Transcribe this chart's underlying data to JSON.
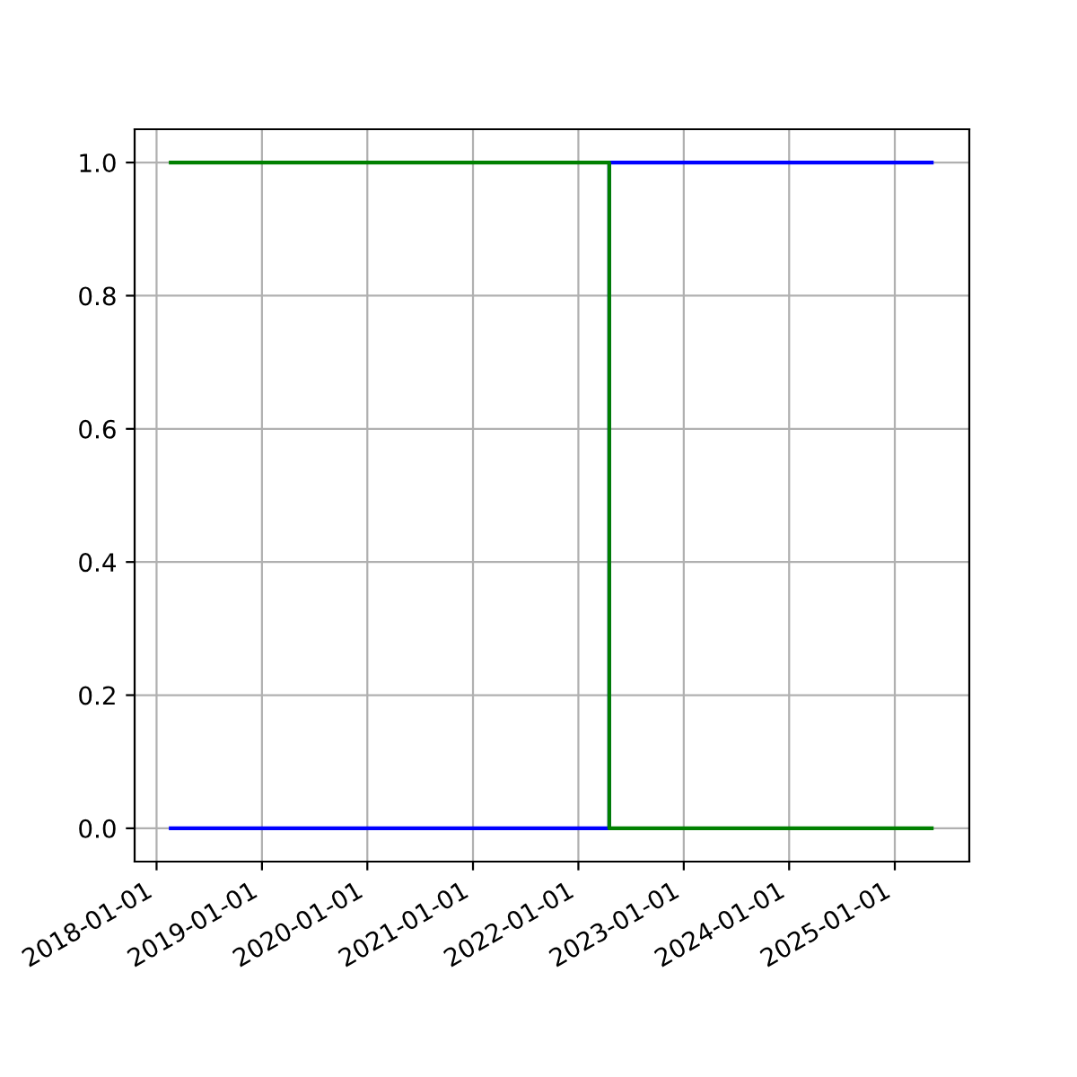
{
  "chart_data": {
    "type": "step",
    "series": [
      {
        "color": "#0000ff",
        "x": [
          "2018-02-19",
          "2022-04-18",
          "2025-05-09"
        ],
        "values": [
          0,
          1,
          1
        ]
      },
      {
        "color": "#008000",
        "x": [
          "2018-02-19",
          "2022-04-18",
          "2025-05-09"
        ],
        "values": [
          1,
          0,
          0
        ]
      }
    ],
    "xlim": [
      "2017-10-17",
      "2025-09-16"
    ],
    "xticks": [
      {
        "value": "2018-01-01",
        "label": "2018-01-01"
      },
      {
        "value": "2019-01-01",
        "label": "2019-01-01"
      },
      {
        "value": "2020-01-01",
        "label": "2020-01-01"
      },
      {
        "value": "2021-01-01",
        "label": "2021-01-01"
      },
      {
        "value": "2022-01-01",
        "label": "2022-01-01"
      },
      {
        "value": "2023-01-01",
        "label": "2023-01-01"
      },
      {
        "value": "2024-01-01",
        "label": "2024-01-01"
      },
      {
        "value": "2025-01-01",
        "label": "2025-01-01"
      }
    ],
    "ylim": [
      -0.05,
      1.05
    ],
    "yticks": [
      {
        "value": 0,
        "label": "0.0"
      },
      {
        "value": 0.2,
        "label": "0.2"
      },
      {
        "value": 0.4,
        "label": "0.4"
      },
      {
        "value": 0.6,
        "label": "0.6"
      },
      {
        "value": 0.8,
        "label": "0.8"
      },
      {
        "value": 1,
        "label": "1.0"
      }
    ],
    "grid": true,
    "line_style": "solid"
  }
}
